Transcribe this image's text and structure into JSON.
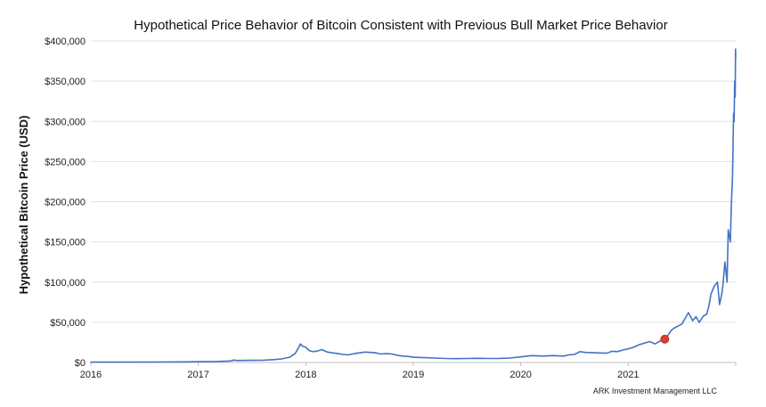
{
  "chart_data": {
    "type": "line",
    "title": "Hypothetical Price Behavior of Bitcoin Consistent with Previous Bull Market Price Behavior",
    "xlabel": "",
    "ylabel": "Hypothetical Bitcoin Price (USD)",
    "source": "ARK Investment Management LLC",
    "xlim": [
      2016.0,
      2022.0
    ],
    "ylim": [
      0,
      400000
    ],
    "x_ticks": [
      2016,
      2017,
      2018,
      2019,
      2020,
      2021
    ],
    "x_tick_labels": [
      "2016",
      "2017",
      "2018",
      "2019",
      "2020",
      "2021"
    ],
    "y_ticks": [
      0,
      50000,
      100000,
      150000,
      200000,
      250000,
      300000,
      350000,
      400000
    ],
    "y_tick_labels": [
      "$0",
      "$50,000",
      "$100,000",
      "$150,000",
      "$200,000",
      "$250,000",
      "$300,000",
      "$350,000",
      "$400,000"
    ],
    "grid": true,
    "line_color": "#4472c4",
    "marker_color": "#e03c31",
    "series": [
      {
        "x": [
          2016.0,
          2016.3,
          2016.6,
          2016.9,
          2017.0,
          2017.15,
          2017.25,
          2017.3,
          2017.33,
          2017.36,
          2017.42,
          2017.5,
          2017.6,
          2017.7,
          2017.78,
          2017.85,
          2017.9,
          2017.93,
          2017.95,
          2017.97,
          2018.0,
          2018.03,
          2018.06,
          2018.1,
          2018.15,
          2018.2,
          2018.25,
          2018.3,
          2018.35,
          2018.4,
          2018.45,
          2018.5,
          2018.55,
          2018.6,
          2018.65,
          2018.7,
          2018.75,
          2018.8,
          2018.85,
          2018.9,
          2018.95,
          2019.0,
          2019.1,
          2019.2,
          2019.3,
          2019.4,
          2019.5,
          2019.6,
          2019.7,
          2019.8,
          2019.9,
          2020.0,
          2020.1,
          2020.2,
          2020.3,
          2020.4,
          2020.45,
          2020.5,
          2020.55,
          2020.6,
          2020.7,
          2020.8,
          2020.85,
          2020.9,
          2020.95,
          2021.0,
          2021.05,
          2021.1,
          2021.15,
          2021.2,
          2021.25,
          2021.3,
          2021.33,
          2021.36,
          2021.4,
          2021.43,
          2021.46,
          2021.5,
          2021.53,
          2021.56,
          2021.6,
          2021.63,
          2021.66,
          2021.7,
          2021.73,
          2021.75,
          2021.77,
          2021.8,
          2021.83,
          2021.85,
          2021.87,
          2021.88,
          2021.89,
          2021.9,
          2021.92,
          2021.93,
          2021.95,
          2021.96,
          2021.97,
          2021.98,
          2021.985,
          2021.99,
          2021.995,
          2021.998,
          2022.0
        ],
        "y": [
          400,
          450,
          600,
          750,
          950,
          1100,
          1600,
          1900,
          3000,
          2400,
          2600,
          2700,
          2800,
          3500,
          4500,
          6500,
          11000,
          18000,
          23000,
          20000,
          19000,
          15000,
          13500,
          14000,
          16000,
          13000,
          12000,
          11000,
          10000,
          9500,
          11000,
          12000,
          13000,
          12500,
          12000,
          10500,
          11000,
          10500,
          9000,
          8000,
          7500,
          6500,
          6000,
          5500,
          5000,
          4800,
          5000,
          5200,
          5000,
          5100,
          5500,
          7000,
          8500,
          8000,
          8500,
          8000,
          9500,
          10000,
          13500,
          12500,
          12000,
          11500,
          14000,
          13500,
          15500,
          17000,
          19000,
          22000,
          24000,
          26000,
          23000,
          27000,
          29000,
          32000,
          40000,
          43000,
          45000,
          48000,
          55000,
          62000,
          52000,
          57000,
          50000,
          58000,
          60000,
          70000,
          85000,
          95000,
          100000,
          72000,
          85000,
          95000,
          110000,
          125000,
          100000,
          165000,
          150000,
          200000,
          230000,
          310000,
          300000,
          350000,
          330000,
          390000,
          380000
        ]
      }
    ],
    "highlight_point": {
      "x": 2021.34,
      "y": 29000
    }
  }
}
